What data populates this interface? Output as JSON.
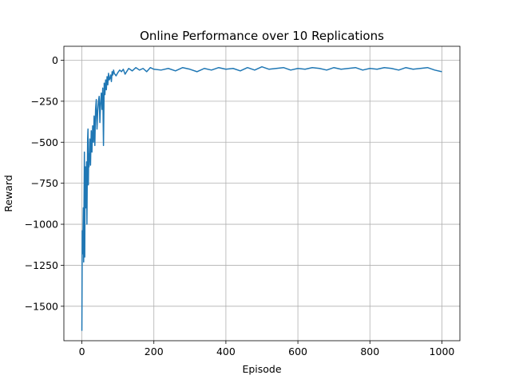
{
  "chart_data": {
    "type": "line",
    "title": "Online Performance over 10 Replications",
    "xlabel": "Episode",
    "ylabel": "Reward",
    "xlim": [
      -50,
      1050
    ],
    "ylim": [
      -1710,
      85
    ],
    "xticks": [
      0,
      200,
      400,
      600,
      800,
      1000
    ],
    "xtick_labels": [
      "0",
      "200",
      "400",
      "600",
      "800",
      "1000"
    ],
    "yticks": [
      0,
      -250,
      -500,
      -750,
      -1000,
      -1250,
      -1500
    ],
    "ytick_labels": [
      "0",
      "−250",
      "−500",
      "−750",
      "−1000",
      "−1250",
      "−1500"
    ],
    "grid": true,
    "line_color": "#1f77b4",
    "series": [
      {
        "name": "",
        "x": [
          0,
          1,
          2,
          3,
          4,
          5,
          6,
          7,
          8,
          9,
          10,
          11,
          12,
          13,
          14,
          15,
          16,
          17,
          18,
          19,
          20,
          22,
          24,
          26,
          28,
          30,
          32,
          34,
          36,
          38,
          40,
          42,
          44,
          46,
          48,
          50,
          52,
          54,
          56,
          58,
          60,
          62,
          64,
          66,
          68,
          70,
          72,
          74,
          76,
          78,
          80,
          82,
          84,
          86,
          88,
          90,
          95,
          100,
          105,
          110,
          115,
          120,
          130,
          140,
          150,
          160,
          170,
          180,
          190,
          200,
          220,
          240,
          260,
          280,
          300,
          320,
          340,
          360,
          380,
          400,
          420,
          440,
          460,
          480,
          500,
          520,
          540,
          560,
          580,
          600,
          620,
          640,
          660,
          680,
          700,
          720,
          740,
          760,
          780,
          800,
          820,
          840,
          860,
          880,
          900,
          920,
          940,
          960,
          980,
          1000
        ],
        "y": [
          -1650,
          -1040,
          -1180,
          -1050,
          -900,
          -1230,
          -880,
          -560,
          -1200,
          -700,
          -650,
          -900,
          -800,
          -620,
          -1000,
          -720,
          -480,
          -420,
          -760,
          -570,
          -650,
          -480,
          -640,
          -430,
          -560,
          -400,
          -500,
          -340,
          -520,
          -300,
          -240,
          -420,
          -310,
          -250,
          -220,
          -380,
          -260,
          -200,
          -300,
          -170,
          -520,
          -140,
          -210,
          -120,
          -180,
          -100,
          -150,
          -80,
          -120,
          -110,
          -90,
          -130,
          -70,
          -90,
          -60,
          -80,
          -95,
          -75,
          -60,
          -70,
          -55,
          -85,
          -50,
          -65,
          -45,
          -60,
          -50,
          -70,
          -45,
          -55,
          -60,
          -50,
          -65,
          -45,
          -55,
          -70,
          -50,
          -60,
          -45,
          -55,
          -50,
          -65,
          -45,
          -60,
          -40,
          -55,
          -50,
          -45,
          -60,
          -50,
          -55,
          -45,
          -50,
          -60,
          -45,
          -55,
          -50,
          -45,
          -60,
          -50,
          -55,
          -45,
          -50,
          -60,
          -45,
          -55,
          -50,
          -45,
          -60,
          -70
        ]
      }
    ]
  }
}
